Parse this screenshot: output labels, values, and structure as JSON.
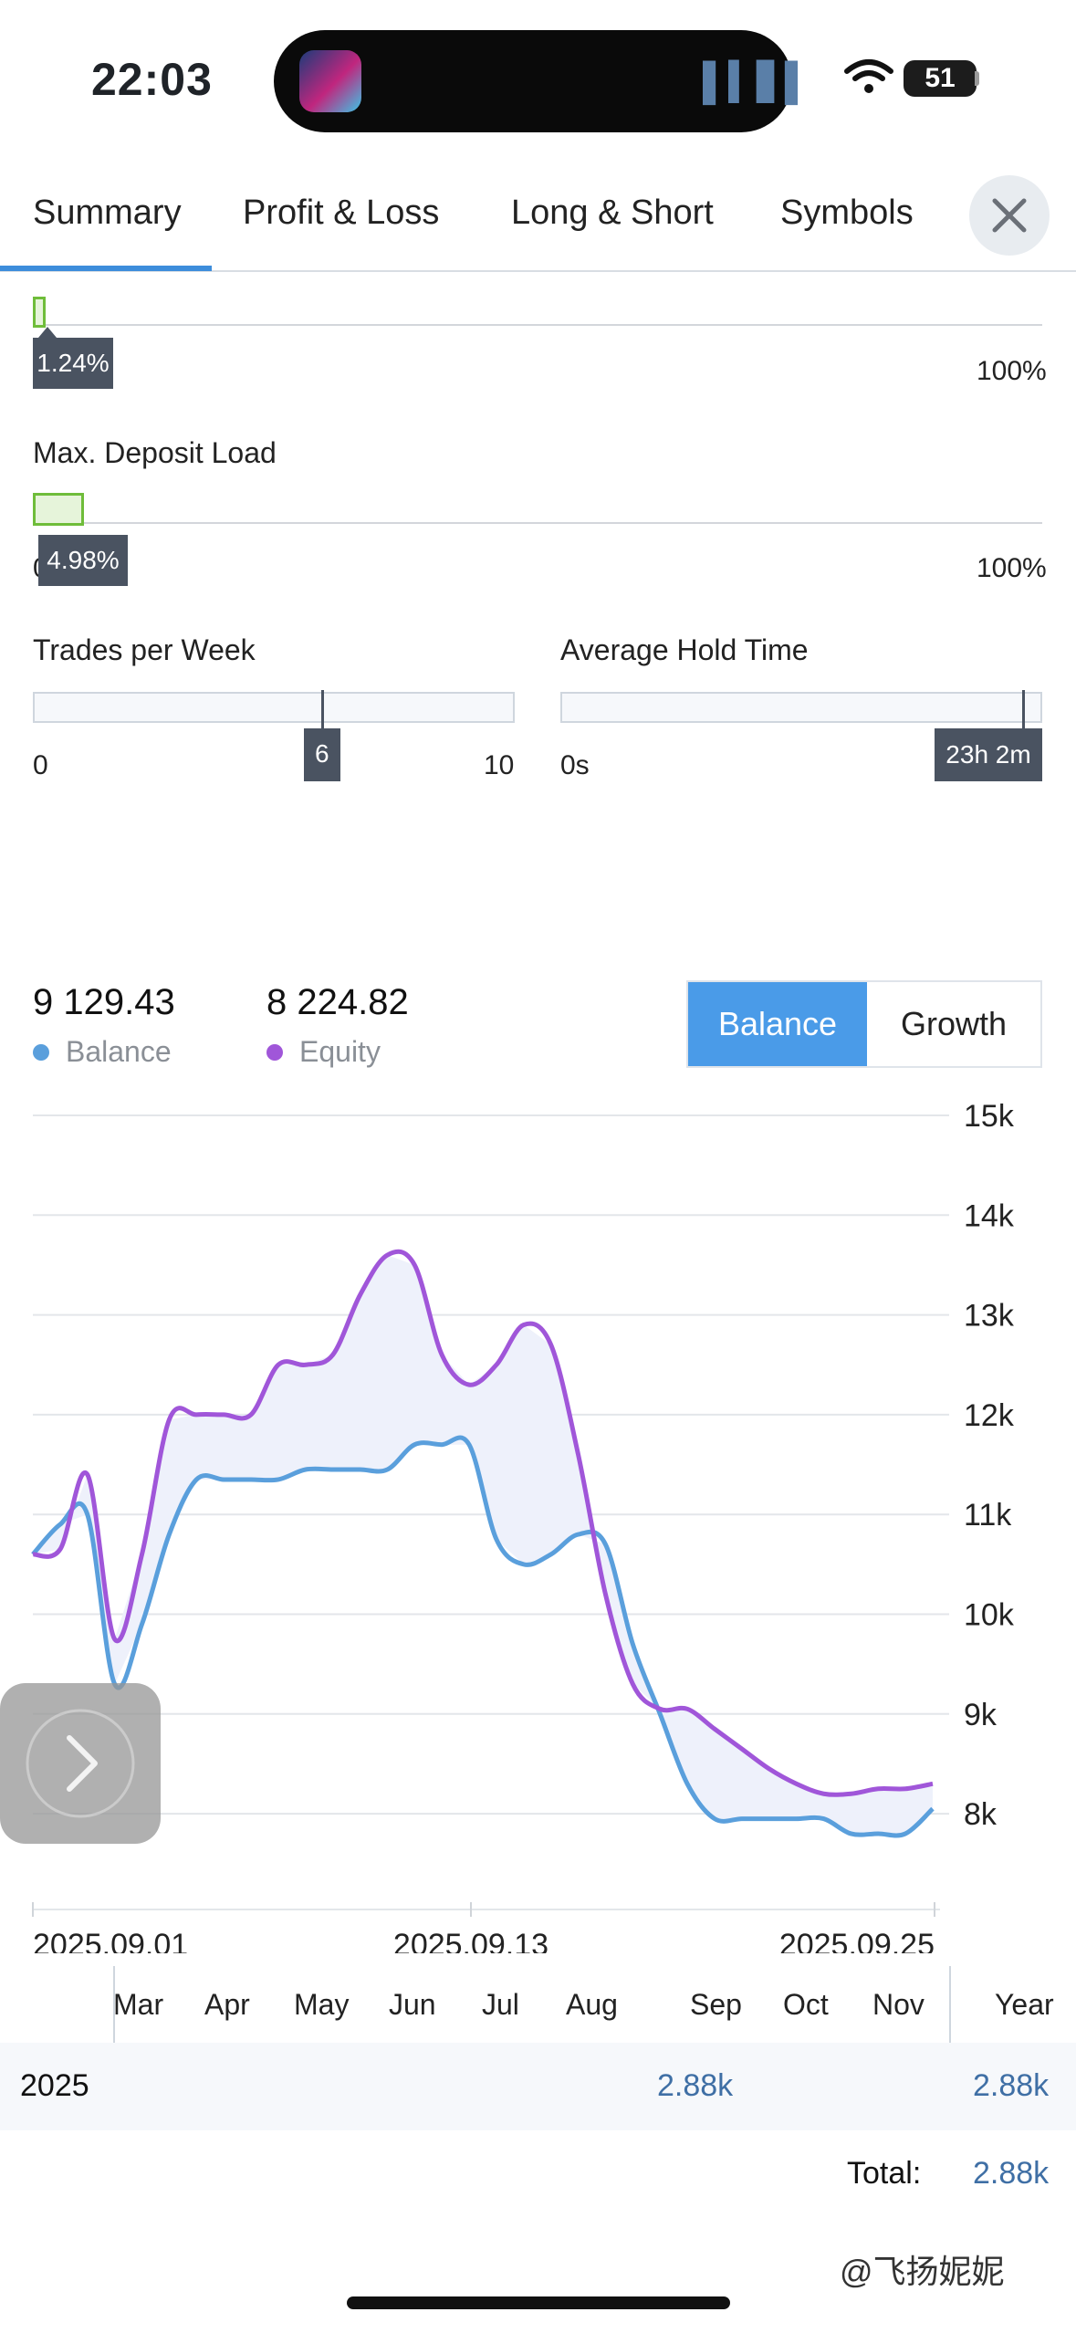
{
  "status_bar": {
    "time": "22:03",
    "battery": "51"
  },
  "tabs": [
    {
      "label": "Summary",
      "active": true
    },
    {
      "label": "Profit & Loss"
    },
    {
      "label": "Long & Short"
    },
    {
      "label": "Symbols"
    }
  ],
  "gauges": {
    "first": {
      "value_label": "1.24%",
      "max_label": "100%",
      "fraction": 0.0124
    },
    "deposit_load": {
      "title": "Max. Deposit Load",
      "min_label": "0",
      "value_label": "4.98%",
      "max_label": "100%",
      "fraction": 0.0498
    },
    "trades_per_week": {
      "title": "Trades per Week",
      "min_label": "0",
      "value_label": "6",
      "max_label": "10",
      "value": 6
    },
    "hold_time": {
      "title": "Average Hold Time",
      "min_label": "0s",
      "value_label": "23h 2m"
    }
  },
  "summary": {
    "balance_value": "9 129.43",
    "balance_label": "Balance",
    "equity_value": "8 224.82",
    "equity_label": "Equity",
    "toggle_balance": "Balance",
    "toggle_growth": "Growth"
  },
  "colors": {
    "balance": "#5a9fdc",
    "equity": "#a056d9",
    "accent": "#4a9be8",
    "gauge_green": "#6fbd3a"
  },
  "chart_data": {
    "type": "line",
    "y_ticks": [
      "15k",
      "14k",
      "13k",
      "12k",
      "11k",
      "10k",
      "9k",
      "8k"
    ],
    "ylim": [
      7000,
      15000
    ],
    "x_tick_labels": [
      "2025.09.01",
      "2025.09.13",
      "2025.09.25"
    ],
    "grid": true,
    "series": [
      {
        "name": "Balance",
        "color": "#5a9fdc",
        "values": [
          10600,
          10900,
          11000,
          9300,
          9900,
          10800,
          11350,
          11350,
          11350,
          11350,
          11450,
          11450,
          11450,
          11450,
          11700,
          11700,
          11700,
          10750,
          10500,
          10600,
          10800,
          10700,
          9700,
          9000,
          8300,
          7950,
          7950,
          7950,
          7950,
          7950,
          7800,
          7800,
          7800,
          8050
        ]
      },
      {
        "name": "Equity",
        "color": "#a056d9",
        "values": [
          10600,
          10650,
          11400,
          9750,
          10600,
          11950,
          12000,
          12000,
          12000,
          12500,
          12500,
          12600,
          13200,
          13600,
          13500,
          12600,
          12300,
          12500,
          12900,
          12700,
          11600,
          10200,
          9300,
          9050,
          9050,
          8850,
          8650,
          8450,
          8300,
          8200,
          8200,
          8250,
          8250,
          8300
        ]
      }
    ]
  },
  "months": {
    "headers": [
      "Mar",
      "Apr",
      "May",
      "Jun",
      "Jul",
      "Aug",
      "Sep",
      "Oct",
      "Nov",
      "Year"
    ],
    "row_year": "2025",
    "sep_value": "2.88k",
    "year_value": "2.88k",
    "total_label": "Total:",
    "total_value": "2.88k"
  },
  "watermark": "@飞扬妮妮"
}
